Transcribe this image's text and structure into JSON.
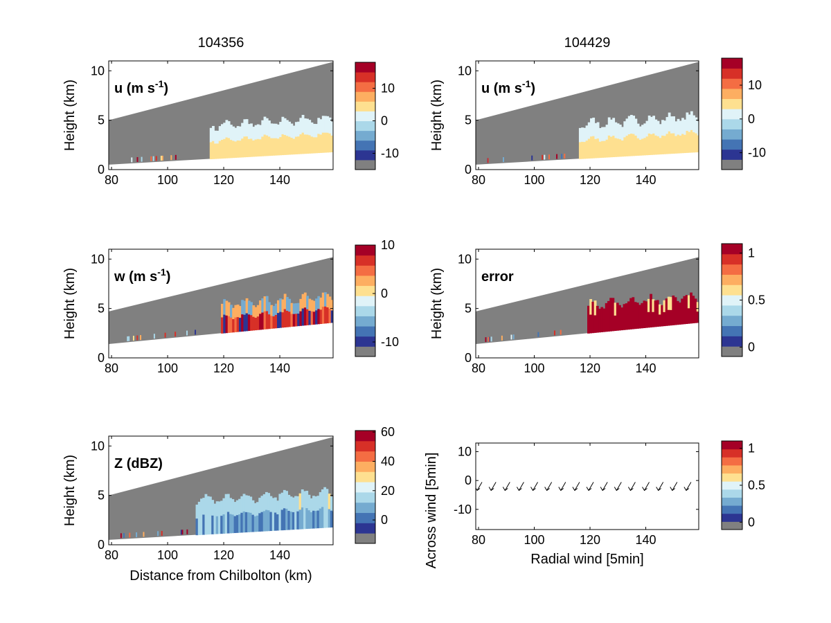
{
  "colors": {
    "gray": "#808080",
    "levels": [
      "#2c3592",
      "#4474b4",
      "#75abd0",
      "#abd8e9",
      "#e0f3f8",
      "#fee090",
      "#fdae61",
      "#f46d43",
      "#d73027",
      "#a50026"
    ]
  },
  "chart_data": [
    {
      "id": "u1",
      "type": "heatmap",
      "title": "104356",
      "panel_label": "u (m s",
      "panel_label_sup": "-1",
      "panel_label_end": ")",
      "ylabel": "Height (km)",
      "xlabel": "",
      "xticks": [
        "80",
        "100",
        "120",
        "140"
      ],
      "yticks": [
        "0",
        "5",
        "10"
      ],
      "xlim": [
        79,
        159
      ],
      "ylim": [
        0,
        11
      ],
      "colorbar": {
        "ticks": [
          "10",
          "0",
          "-10"
        ],
        "min": -15,
        "max": 18,
        "tick_values": [
          10,
          0,
          -10
        ]
      },
      "gray_top": [
        5.0,
        10.9
      ],
      "floor": [
        0.5,
        1.8
      ],
      "echo": {
        "x": [
          115,
          159
        ],
        "top": 4.4,
        "color_index": 5,
        "upper_color_index": 4
      }
    },
    {
      "id": "u2",
      "type": "heatmap",
      "title": "104429",
      "panel_label": "u (m s",
      "panel_label_sup": "-1",
      "panel_label_end": ")",
      "ylabel": "Height (km)",
      "xlabel": "",
      "xticks": [
        "80",
        "100",
        "120",
        "140"
      ],
      "yticks": [
        "0",
        "5",
        "10"
      ],
      "xlim": [
        79,
        159
      ],
      "ylim": [
        0,
        11
      ],
      "colorbar": {
        "ticks": [
          "10",
          "0",
          "-10"
        ],
        "min": -15,
        "max": 18,
        "tick_values": [
          10,
          0,
          -10
        ]
      },
      "gray_top": [
        5.0,
        10.9
      ],
      "floor": [
        0.5,
        1.8
      ],
      "echo": {
        "x": [
          116,
          159
        ],
        "top": 4.6,
        "color_index": 5,
        "upper_color_index": 4
      }
    },
    {
      "id": "w",
      "type": "heatmap",
      "title": "",
      "panel_label": "w (m s",
      "panel_label_sup": "-1",
      "panel_label_end": ")",
      "ylabel": "Height (km)",
      "xlabel": "",
      "xticks": [
        "80",
        "100",
        "120",
        "140"
      ],
      "yticks": [
        "0",
        "5",
        "10"
      ],
      "xlim": [
        79,
        159
      ],
      "ylim": [
        0,
        11
      ],
      "colorbar": {
        "ticks": [
          "10",
          "0",
          "-10"
        ],
        "min": -13,
        "max": 10,
        "tick_values": [
          10,
          0,
          -10
        ]
      },
      "gray_top": [
        4.7,
        10.2
      ],
      "floor": [
        1.4,
        3.6
      ],
      "echo": {
        "x": [
          119,
          159
        ],
        "top": 5.4,
        "color_index": 8,
        "upper_color_index": 2
      }
    },
    {
      "id": "err",
      "type": "heatmap",
      "title": "",
      "panel_label": "error",
      "panel_label_sup": "",
      "panel_label_end": "",
      "ylabel": "Height (km)",
      "xlabel": "",
      "xticks": [
        "80",
        "100",
        "120",
        "140"
      ],
      "yticks": [
        "0",
        "5",
        "10"
      ],
      "xlim": [
        79,
        159
      ],
      "ylim": [
        0,
        11
      ],
      "colorbar": {
        "ticks": [
          "1",
          "0.5",
          "0"
        ],
        "min": -0.1,
        "max": 1.1,
        "tick_values": [
          1,
          0.5,
          0
        ]
      },
      "gray_top": [
        4.7,
        10.2
      ],
      "floor": [
        1.4,
        3.6
      ],
      "echo": {
        "x": [
          119,
          159
        ],
        "top": 5.4,
        "color_index": 9,
        "upper_color_index": 9
      }
    },
    {
      "id": "z",
      "type": "heatmap",
      "title": "",
      "panel_label": "Z (dBZ)",
      "panel_label_sup": "",
      "panel_label_end": "",
      "ylabel": "Height (km)",
      "xlabel": "Distance from Chilbolton (km)",
      "xticks": [
        "80",
        "100",
        "120",
        "140"
      ],
      "yticks": [
        "0",
        "5",
        "10"
      ],
      "xlim": [
        79,
        159
      ],
      "ylim": [
        0,
        11
      ],
      "colorbar": {
        "ticks": [
          "60",
          "40",
          "20",
          "0"
        ],
        "min": -16,
        "max": 61,
        "tick_values": [
          60,
          40,
          20,
          0
        ]
      },
      "gray_top": [
        5.0,
        10.9
      ],
      "floor": [
        0.5,
        1.8
      ],
      "echo": {
        "x": [
          110,
          159
        ],
        "top": 4.5,
        "color_index": 2,
        "upper_color_index": 3
      }
    },
    {
      "id": "wind",
      "type": "scatter",
      "title": "",
      "panel_label": "",
      "ylabel": "Across wind [5min]",
      "xlabel": "Radial wind [5min]",
      "xticks": [
        "80",
        "100",
        "120",
        "140"
      ],
      "yticks": [
        "10",
        "0",
        "-10"
      ],
      "xlim": [
        79,
        159
      ],
      "ylim": [
        -17,
        13
      ],
      "colorbar": {
        "ticks": [
          "1",
          "0.5",
          "0"
        ],
        "min": -0.1,
        "max": 1.1,
        "tick_values": [
          1,
          0.5,
          0
        ]
      },
      "arrows": {
        "x": [
          80,
          85,
          90,
          95,
          100,
          105,
          110,
          115,
          120,
          125,
          130,
          135,
          140,
          145,
          150,
          155
        ],
        "y": [
          -2,
          -2,
          -2,
          -2,
          -2,
          -2,
          -2,
          -2,
          -2,
          -2,
          -2,
          -2,
          -2,
          -2,
          -2,
          -2
        ]
      }
    }
  ]
}
